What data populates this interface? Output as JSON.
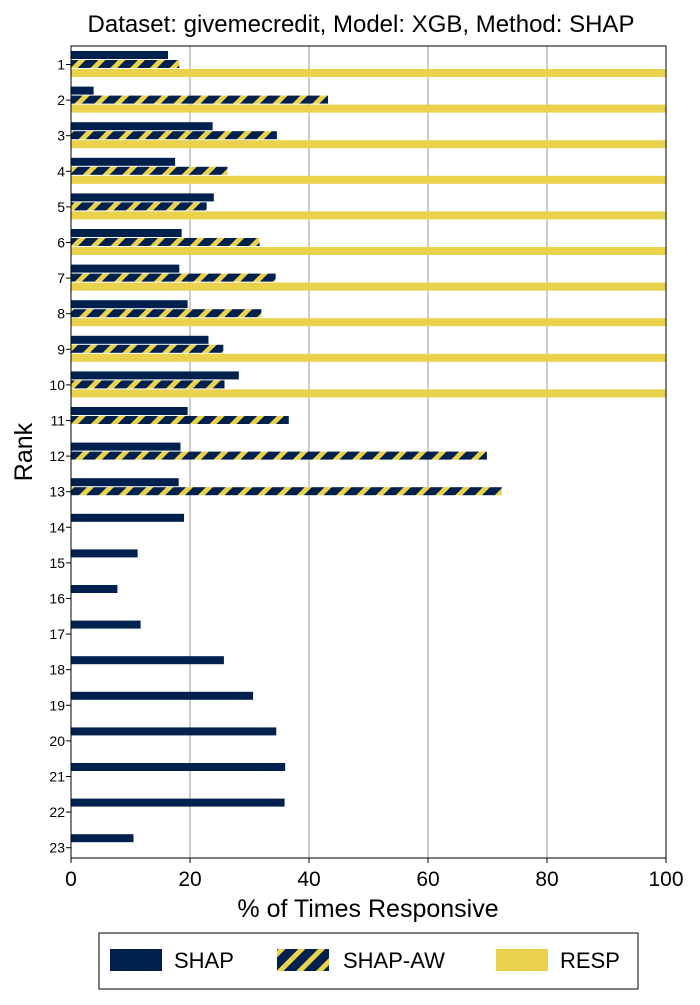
{
  "colors": {
    "shap": "#00214d",
    "shap_aw_stripe": "#ead24c",
    "resp": "#ead24c",
    "grid": "#999999"
  },
  "chart_data": {
    "type": "bar",
    "orientation": "horizontal",
    "title": "Dataset: givemecredit, Model: XGB, Method: SHAP",
    "xlabel": "% of Times Responsive",
    "ylabel": "Rank",
    "xlim": [
      0,
      100
    ],
    "xticks": [
      "0",
      "20",
      "40",
      "60",
      "80",
      "100"
    ],
    "xtick_values": [
      0,
      20,
      40,
      60,
      80,
      100
    ],
    "grid": "vertical",
    "legend_position": "bottom",
    "categories": [
      "1",
      "2",
      "3",
      "4",
      "5",
      "6",
      "7",
      "8",
      "9",
      "10",
      "11",
      "12",
      "13",
      "14",
      "15",
      "16",
      "17",
      "18",
      "19",
      "20",
      "21",
      "22",
      "23"
    ],
    "series": [
      {
        "name": "SHAP",
        "style": "solid-navy",
        "values": [
          16.3,
          3.8,
          23.8,
          17.5,
          24.0,
          18.6,
          18.2,
          19.6,
          23.1,
          28.2,
          19.6,
          18.4,
          18.1,
          19.0,
          11.2,
          7.8,
          11.7,
          25.7,
          30.6,
          34.5,
          36.0,
          35.9,
          10.5
        ]
      },
      {
        "name": "SHAP-AW",
        "style": "hatched",
        "values": [
          18.2,
          43.2,
          34.6,
          26.3,
          22.8,
          31.7,
          34.4,
          32.0,
          25.6,
          25.8,
          36.6,
          69.9,
          72.4,
          null,
          null,
          null,
          null,
          null,
          null,
          null,
          null,
          null,
          null
        ]
      },
      {
        "name": "RESP",
        "style": "solid-yellow",
        "values": [
          100,
          100,
          100,
          100,
          100,
          100,
          100,
          100,
          100,
          100,
          null,
          null,
          null,
          null,
          null,
          null,
          null,
          null,
          null,
          null,
          null,
          null,
          null
        ]
      }
    ]
  }
}
